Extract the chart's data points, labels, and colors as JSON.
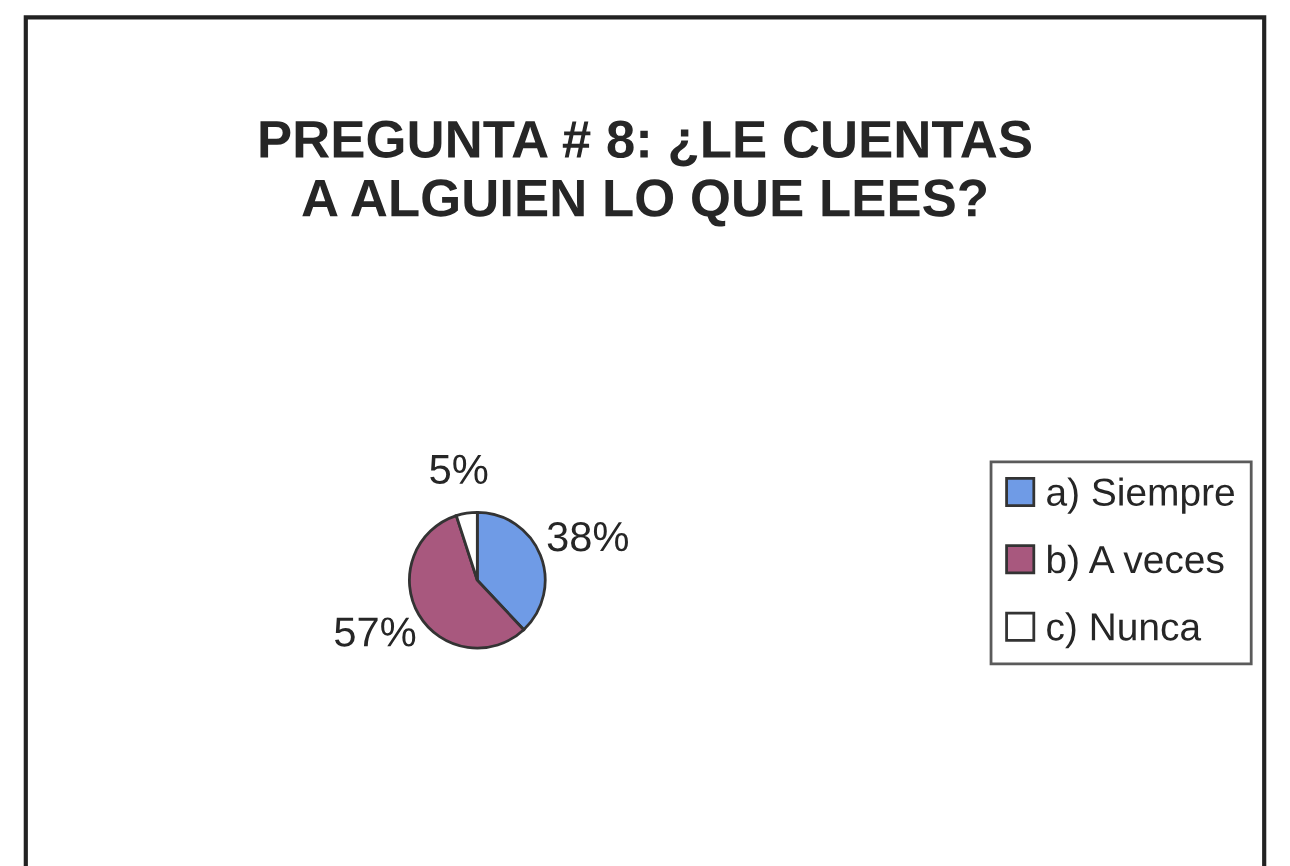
{
  "chart_data": {
    "type": "pie",
    "title": "PREGUNTA # 8: ¿LE CUENTAS\nA ALGUIEN LO QUE LEES?",
    "categories": [
      "a) Siempre",
      "b) A veces",
      "c) Nunca"
    ],
    "values": [
      38,
      57,
      5
    ],
    "colors": [
      "#6f9be6",
      "#a8587e",
      "#ffffff"
    ],
    "value_labels": [
      "38%",
      "57%",
      "5%"
    ],
    "legend": "right"
  }
}
